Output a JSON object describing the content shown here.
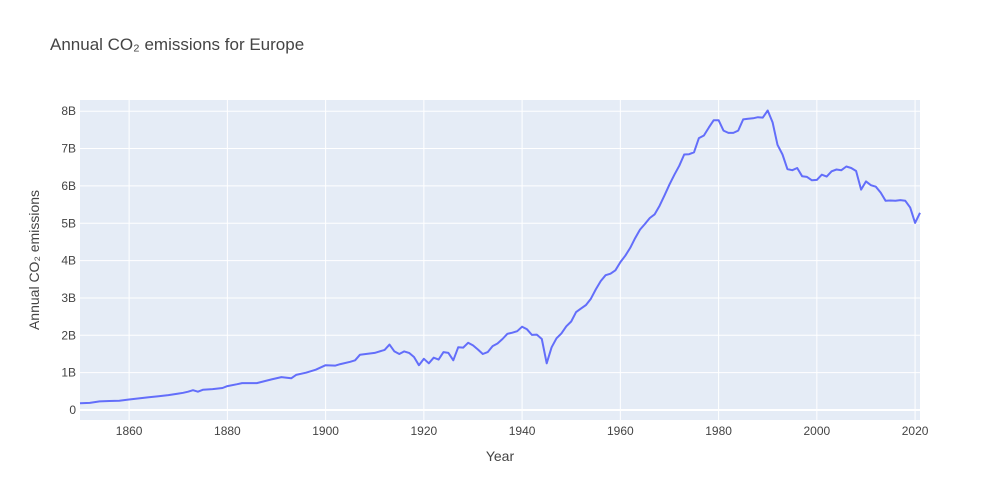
{
  "chart_data": {
    "type": "line",
    "title": "Annual CO₂ emissions for Europe",
    "xlabel": "Year",
    "ylabel": "Annual CO₂ emissions",
    "xlim": [
      1850,
      2021
    ],
    "ylim": [
      0,
      8.3
    ],
    "x_ticks": [
      1860,
      1880,
      1900,
      1920,
      1940,
      1960,
      1980,
      2000,
      2020
    ],
    "y_ticks": [
      {
        "value": 0,
        "label": "0"
      },
      {
        "value": 1,
        "label": "1B"
      },
      {
        "value": 2,
        "label": "2B"
      },
      {
        "value": 3,
        "label": "3B"
      },
      {
        "value": 4,
        "label": "4B"
      },
      {
        "value": 5,
        "label": "5B"
      },
      {
        "value": 6,
        "label": "6B"
      },
      {
        "value": 7,
        "label": "7B"
      },
      {
        "value": 8,
        "label": "8B"
      }
    ],
    "grid": true,
    "colors": {
      "line": "#636efa",
      "plot_bg": "#e5ecf6",
      "grid": "#ffffff"
    },
    "series": [
      {
        "x": [
          1850,
          1852,
          1854,
          1856,
          1858,
          1860,
          1862,
          1864,
          1866,
          1868,
          1870,
          1871,
          1872,
          1873,
          1874,
          1875,
          1877,
          1879,
          1880,
          1882,
          1883,
          1886,
          1889,
          1891,
          1893,
          1894,
          1896,
          1898,
          1900,
          1902,
          1903,
          1905,
          1906,
          1907,
          1910,
          1912,
          1913,
          1914,
          1915,
          1916,
          1917,
          1918,
          1919,
          1920,
          1921,
          1922,
          1923,
          1924,
          1925,
          1926,
          1927,
          1928,
          1929,
          1930,
          1931,
          1932,
          1933,
          1934,
          1935,
          1936,
          1937,
          1938,
          1939,
          1940,
          1941,
          1942,
          1943,
          1944,
          1945,
          1946,
          1947,
          1948,
          1949,
          1950,
          1951,
          1952,
          1953,
          1954,
          1955,
          1956,
          1957,
          1958,
          1959,
          1960,
          1961,
          1962,
          1963,
          1964,
          1965,
          1966,
          1967,
          1968,
          1969,
          1970,
          1971,
          1972,
          1973,
          1974,
          1975,
          1976,
          1977,
          1978,
          1979,
          1980,
          1981,
          1982,
          1983,
          1984,
          1985,
          1986,
          1987,
          1988,
          1989,
          1990,
          1991,
          1992,
          1993,
          1994,
          1995,
          1996,
          1997,
          1998,
          1999,
          2000,
          2001,
          2002,
          2003,
          2004,
          2005,
          2006,
          2007,
          2008,
          2009,
          2010,
          2011,
          2012,
          2013,
          2014,
          2015,
          2016,
          2017,
          2018,
          2019,
          2020,
          2021
        ],
        "y": [
          0.18,
          0.19,
          0.23,
          0.24,
          0.25,
          0.28,
          0.31,
          0.34,
          0.37,
          0.4,
          0.44,
          0.46,
          0.49,
          0.53,
          0.49,
          0.54,
          0.56,
          0.59,
          0.64,
          0.69,
          0.72,
          0.72,
          0.82,
          0.88,
          0.85,
          0.94,
          1.0,
          1.08,
          1.2,
          1.19,
          1.23,
          1.29,
          1.33,
          1.48,
          1.53,
          1.61,
          1.75,
          1.57,
          1.5,
          1.57,
          1.53,
          1.42,
          1.2,
          1.37,
          1.25,
          1.4,
          1.35,
          1.55,
          1.53,
          1.33,
          1.68,
          1.67,
          1.8,
          1.73,
          1.62,
          1.5,
          1.55,
          1.71,
          1.78,
          1.9,
          2.04,
          2.07,
          2.11,
          2.23,
          2.16,
          2.01,
          2.02,
          1.9,
          1.25,
          1.68,
          1.92,
          2.05,
          2.24,
          2.37,
          2.62,
          2.72,
          2.81,
          2.98,
          3.23,
          3.45,
          3.61,
          3.65,
          3.74,
          3.96,
          4.13,
          4.34,
          4.6,
          4.83,
          4.98,
          5.14,
          5.24,
          5.47,
          5.75,
          6.04,
          6.3,
          6.54,
          6.84,
          6.85,
          6.9,
          7.28,
          7.35,
          7.56,
          7.76,
          7.76,
          7.48,
          7.42,
          7.42,
          7.48,
          7.78,
          7.8,
          7.81,
          7.84,
          7.83,
          8.02,
          7.7,
          7.1,
          6.84,
          6.45,
          6.42,
          6.48,
          6.26,
          6.24,
          6.15,
          6.16,
          6.3,
          6.25,
          6.39,
          6.44,
          6.42,
          6.52,
          6.48,
          6.4,
          5.9,
          6.12,
          6.02,
          5.98,
          5.82,
          5.6,
          5.61,
          5.6,
          5.62,
          5.6,
          5.42,
          5.01,
          5.28
        ]
      }
    ]
  }
}
